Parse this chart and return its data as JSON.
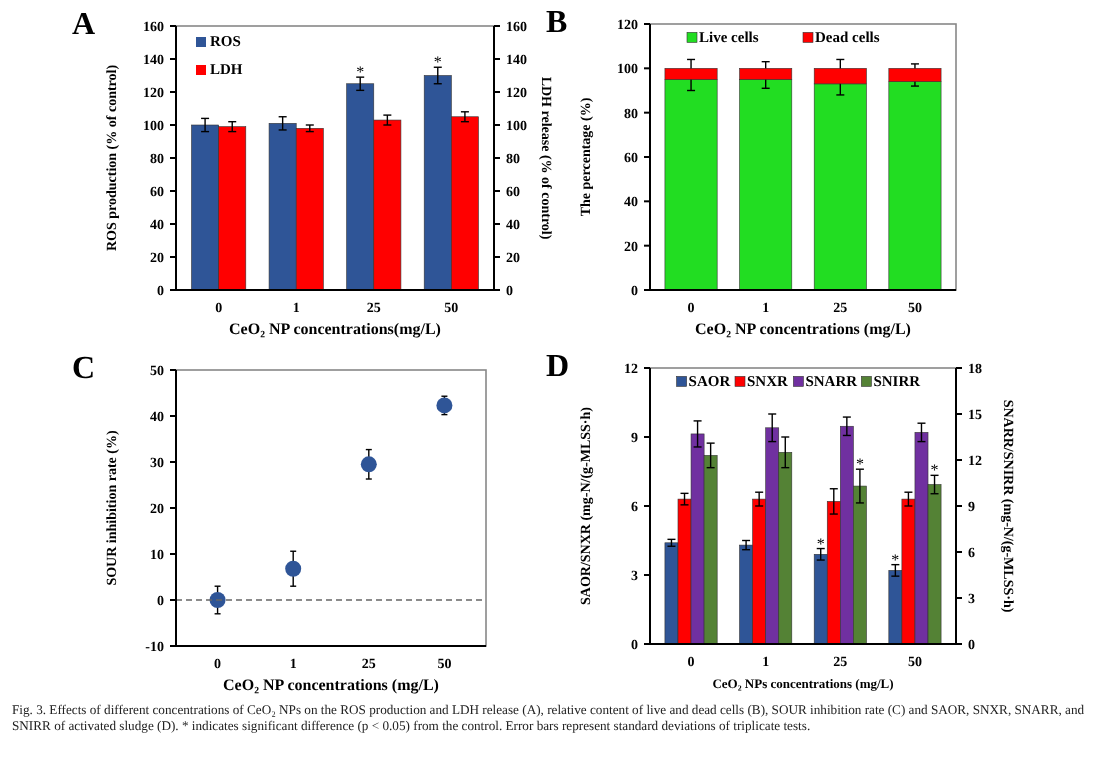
{
  "chart_data": [
    {
      "type": "bar",
      "title": "A",
      "xlabel": "CeO₂ NP concentrations(mg/L)",
      "ylabel": "ROS production (% of control)",
      "y2label": "LDH release (% of control)",
      "categories": [
        "0",
        "1",
        "25",
        "50"
      ],
      "series": [
        {
          "name": "ROS",
          "color": "#2f5597",
          "values": [
            100,
            101,
            125,
            130
          ],
          "errors": [
            4,
            4,
            4,
            5
          ]
        },
        {
          "name": "LDH",
          "color": "#ff0000",
          "axis": "y2",
          "values": [
            99,
            98,
            103,
            105
          ],
          "errors": [
            3,
            2,
            3,
            3
          ]
        }
      ],
      "ylim": [
        0,
        160
      ],
      "yticks": [
        0,
        20,
        40,
        60,
        80,
        100,
        120,
        140,
        160
      ],
      "y2lim": [
        0,
        160
      ],
      "y2ticks": [
        0,
        20,
        40,
        60,
        80,
        100,
        120,
        140,
        160
      ],
      "legend": "top left",
      "annotations": [
        {
          "text": "*",
          "x": "25",
          "y": 125
        },
        {
          "text": "*",
          "x": "50",
          "y": 130
        }
      ]
    },
    {
      "type": "bar",
      "stacked": true,
      "title": "B",
      "xlabel": "CeO₂ NP concentrations (mg/L)",
      "ylabel": "The percentage (%)",
      "categories": [
        "0",
        "1",
        "25",
        "50"
      ],
      "series": [
        {
          "name": "Live cells",
          "color": "#22dd22",
          "values": [
            95,
            95,
            93,
            94
          ],
          "errors": [
            [
              90,
              104
            ],
            [
              91,
              103
            ],
            [
              88,
              104
            ],
            [
              92,
              102
            ]
          ]
        },
        {
          "name": "Dead cells",
          "color": "#ff0000",
          "values": [
            5,
            5,
            7,
            6
          ]
        }
      ],
      "ylim": [
        0,
        120
      ],
      "yticks": [
        0,
        20,
        40,
        60,
        80,
        100,
        120
      ],
      "legend": "top"
    },
    {
      "type": "scatter",
      "title": "C",
      "xlabel": "CeO₂ NP concentrations (mg/L)",
      "ylabel": "SOUR inhibition rate (%)",
      "categories": [
        "0",
        "1",
        "25",
        "50"
      ],
      "series": [
        {
          "color": "#2f5597",
          "values": [
            0,
            6.8,
            29.5,
            42.3
          ],
          "errors": [
            3,
            3.8,
            3.2,
            2
          ]
        }
      ],
      "marker": "circle",
      "ylim": [
        -10,
        50
      ],
      "yticks": [
        -10,
        0,
        10,
        20,
        30,
        40,
        50
      ],
      "ref_lines": [
        {
          "axis": "y",
          "value": 0,
          "line_style": "dashed",
          "color": "#666666"
        }
      ]
    },
    {
      "type": "bar",
      "title": "D",
      "xlabel": "CeO₂ NPs concentrations (mg/L)",
      "ylabel": "SAOR/SNXR (mg-N/(g-MLSS·h)",
      "y2label": "SNARR/SNIRR (mg-N/(g-MLSS·h)",
      "categories": [
        "0",
        "1",
        "25",
        "50"
      ],
      "series": [
        {
          "name": "SAOR",
          "color": "#2f5597",
          "values": [
            4.4,
            4.3,
            3.9,
            3.2
          ],
          "errors": [
            0.15,
            0.2,
            0.25,
            0.25
          ]
        },
        {
          "name": "SNXR",
          "color": "#ff0000",
          "values": [
            6.3,
            6.3,
            6.2,
            6.3
          ],
          "errors": [
            0.25,
            0.3,
            0.55,
            0.3
          ]
        },
        {
          "name": "SNARR",
          "color": "#7030a0",
          "axis": "y2",
          "values": [
            13.7,
            14.1,
            14.2,
            13.8
          ],
          "errors": [
            0.85,
            0.9,
            0.6,
            0.6
          ]
        },
        {
          "name": "SNIRR",
          "color": "#548235",
          "axis": "y2",
          "values": [
            12.3,
            12.5,
            10.3,
            10.4
          ],
          "errors": [
            0.8,
            1,
            1.1,
            0.6
          ]
        }
      ],
      "ylim": [
        0,
        12
      ],
      "yticks": [
        0,
        3,
        6,
        9,
        12
      ],
      "y2lim": [
        0,
        18
      ],
      "y2ticks": [
        0,
        3,
        6,
        9,
        12,
        15,
        18
      ],
      "legend": "top",
      "annotations": [
        {
          "text": "*",
          "x": "25",
          "y": 3.9
        },
        {
          "text": "*",
          "x": "50",
          "y": 3.2
        },
        {
          "text": "*",
          "x": "25",
          "y": 6.9
        },
        {
          "text": "*",
          "x": "50",
          "y": 6.9
        },
        "Fig. 3. Effects of different concentrations of CeO₂ NPs on the ROS production and LDH release (A), relative content of live and dead cells (B), SOUR inhibition rate (C) and SAOR, SNXR, SNARR, and SNIRR of activated sludge (D). * indicates significant difference (p < 0.05) from the control. Error bars represent standard deviations of triplicate tests."
      ]
    }
  ]
}
